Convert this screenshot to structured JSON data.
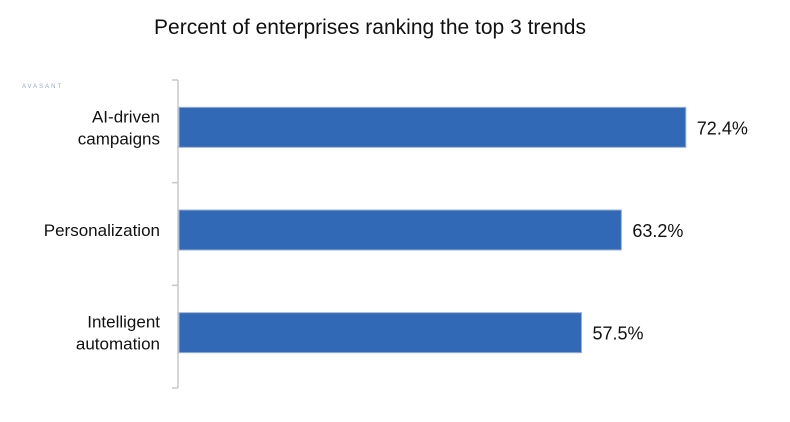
{
  "title": "Percent of enterprises ranking the top 3 trends",
  "watermark": "AVASANT",
  "colors": {
    "bar": "#3269b7",
    "bar_border": "#9bb0d6",
    "axis": "#c8c8c8"
  },
  "chart_data": {
    "type": "bar",
    "orientation": "horizontal",
    "title": "Percent of enterprises ranking the top 3 trends",
    "categories": [
      [
        "AI-driven",
        "campaigns"
      ],
      [
        "Personalization"
      ],
      [
        "Intelligent",
        "automation"
      ]
    ],
    "values": [
      72.4,
      63.2,
      57.5
    ],
    "value_labels": [
      "72.4%",
      "63.2%",
      "57.5%"
    ],
    "xlim": [
      0,
      100
    ],
    "grid": false,
    "legend": "none"
  }
}
